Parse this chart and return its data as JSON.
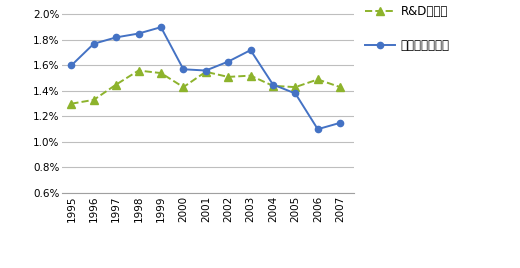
{
  "years": [
    1995,
    1996,
    1997,
    1998,
    1999,
    2000,
    2001,
    2002,
    2003,
    2004,
    2005,
    2006,
    2007
  ],
  "rd_values": [
    0.013,
    0.0133,
    0.0145,
    0.0156,
    0.0154,
    0.0143,
    0.0155,
    0.0151,
    0.0152,
    0.0144,
    0.0143,
    0.0149,
    0.0143
  ],
  "it_values": [
    0.016,
    0.0177,
    0.0182,
    0.0185,
    0.019,
    0.0157,
    0.0156,
    0.0163,
    0.0172,
    0.0145,
    0.0138,
    0.011,
    0.0115
  ],
  "rd_color": "#8db32c",
  "it_color": "#4472c4",
  "rd_label": "R&D集約度",
  "it_label": "情報処理集約度",
  "ylim_min": 0.006,
  "ylim_max": 0.0205,
  "yticks": [
    0.006,
    0.008,
    0.01,
    0.012,
    0.014,
    0.016,
    0.018,
    0.02
  ],
  "background_color": "#ffffff",
  "grid_color": "#bebebe",
  "spine_color": "#a0a0a0"
}
